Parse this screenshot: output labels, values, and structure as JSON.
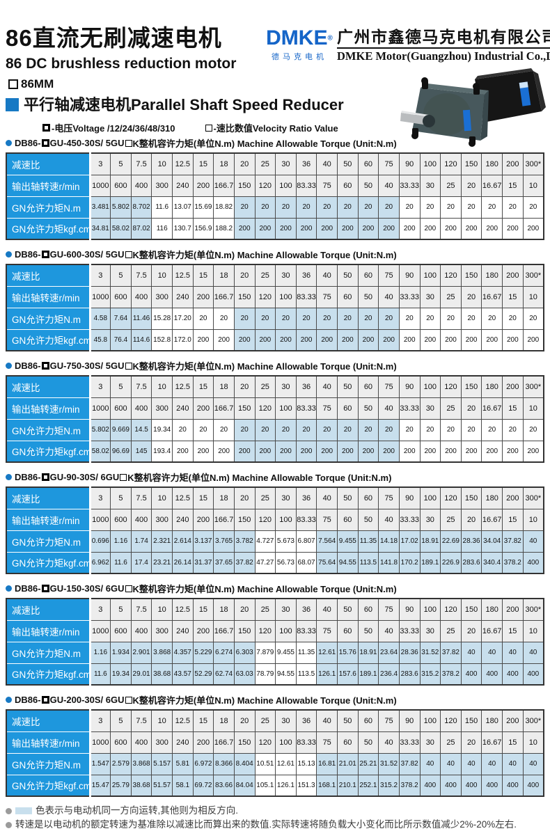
{
  "colors": {
    "header_blue": "#1e97dd",
    "cell_blue": "#c8dfed",
    "cell_gray": "#ededed",
    "accent_blue": "#1779c4",
    "logo_blue": "#1565c8"
  },
  "header": {
    "title_cn": "86直流无刷减速电机",
    "title_en": "86 DC brushless reduction motor",
    "size_label": "86MM",
    "series_label": "平行轴减速电机Parallel Shaft Speed Reducer",
    "legend_voltage": "-电压Voltage /12/24/36/48/310",
    "legend_ratio": "-速比数值Velocity Ratio Value"
  },
  "brand": {
    "logo": "DMKE",
    "logo_reg": "®",
    "logo_sub": "德马克电机",
    "company_cn": "广州市鑫德马克电机有限公司",
    "company_en": "DMKE Motor(Guangzhou) Industrial Co.,Limited"
  },
  "row_labels": [
    "减速比",
    "输出轴转速r/min",
    "GN允许力矩N.m",
    "GN允许力矩kgf.cm"
  ],
  "ratios": [
    "3",
    "5",
    "7.5",
    "10",
    "12.5",
    "15",
    "18",
    "20",
    "25",
    "30",
    "36",
    "40",
    "50",
    "60",
    "75",
    "90",
    "100",
    "120",
    "150",
    "180",
    "200",
    "300*"
  ],
  "speeds": [
    "1000",
    "600",
    "400",
    "300",
    "240",
    "200",
    "166.7",
    "150",
    "120",
    "100",
    "83.33",
    "75",
    "60",
    "50",
    "40",
    "33.33",
    "30",
    "25",
    "20",
    "16.67",
    "15",
    "10"
  ],
  "tables": [
    {
      "title_prefix": "DB86-",
      "title_mid": "GU-450-30S/ 5GU",
      "title_suffix": "K整机容许力矩(单位N.m) Machine Allowable Torque (Unit:N.m)",
      "nm": [
        "3.481",
        "5.802",
        "8.702",
        "11.6",
        "13.07",
        "15.69",
        "18.82",
        "20",
        "20",
        "20",
        "20",
        "20",
        "20",
        "20",
        "20",
        "20",
        "20",
        "20",
        "20",
        "20",
        "20",
        "20"
      ],
      "kgfcm": [
        "34.81",
        "58.02",
        "87.02",
        "116",
        "130.7",
        "156.9",
        "188.2",
        "200",
        "200",
        "200",
        "200",
        "200",
        "200",
        "200",
        "200",
        "200",
        "200",
        "200",
        "200",
        "200",
        "200",
        "200"
      ],
      "same_direction_cols": [
        0,
        1,
        2,
        7,
        8,
        9,
        10,
        11,
        12,
        13,
        14
      ]
    },
    {
      "title_prefix": "DB86-",
      "title_mid": "GU-600-30S/ 5GU",
      "title_suffix": "K整机容许力矩(单位N.m) Machine Allowable Torque (Unit:N.m)",
      "nm": [
        "4.58",
        "7.64",
        "11.46",
        "15.28",
        "17.20",
        "20",
        "20",
        "20",
        "20",
        "20",
        "20",
        "20",
        "20",
        "20",
        "20",
        "20",
        "20",
        "20",
        "20",
        "20",
        "20",
        "20"
      ],
      "kgfcm": [
        "45.8",
        "76.4",
        "114.6",
        "152.8",
        "172.0",
        "200",
        "200",
        "200",
        "200",
        "200",
        "200",
        "200",
        "200",
        "200",
        "200",
        "200",
        "200",
        "200",
        "200",
        "200",
        "200",
        "200"
      ],
      "same_direction_cols": [
        0,
        1,
        2,
        7,
        8,
        9,
        10,
        11,
        12,
        13,
        14
      ]
    },
    {
      "title_prefix": "DB86-",
      "title_mid": "GU-750-30S/ 5GU",
      "title_suffix": "K整机容许力矩(单位N.m) Machine Allowable Torque (Unit:N.m)",
      "nm": [
        "5.802",
        "9.669",
        "14.5",
        "19.34",
        "20",
        "20",
        "20",
        "20",
        "20",
        "20",
        "20",
        "20",
        "20",
        "20",
        "20",
        "20",
        "20",
        "20",
        "20",
        "20",
        "20",
        "20"
      ],
      "kgfcm": [
        "58.02",
        "96.69",
        "145",
        "193.4",
        "200",
        "200",
        "200",
        "200",
        "200",
        "200",
        "200",
        "200",
        "200",
        "200",
        "200",
        "200",
        "200",
        "200",
        "200",
        "200",
        "200",
        "200"
      ],
      "same_direction_cols": [
        0,
        1,
        2,
        7,
        8,
        9,
        10,
        11,
        12,
        13,
        14
      ]
    },
    {
      "title_prefix": "DB86-",
      "title_mid": "GU-90-30S/ 6GU",
      "title_suffix": "K整机容许力矩(单位N.m) Machine Allowable Torque (Unit:N.m)",
      "nm": [
        "0.696",
        "1.16",
        "1.74",
        "2.321",
        "2.614",
        "3.137",
        "3.765",
        "3.782",
        "4.727",
        "5.673",
        "6.807",
        "7.564",
        "9.455",
        "11.35",
        "14.18",
        "17.02",
        "18.91",
        "22.69",
        "28.36",
        "34.04",
        "37.82",
        "40"
      ],
      "kgfcm": [
        "6.962",
        "11.6",
        "17.4",
        "23.21",
        "26.14",
        "31.37",
        "37.65",
        "37.82",
        "47.27",
        "56.73",
        "68.07",
        "75.64",
        "94.55",
        "113.5",
        "141.8",
        "170.2",
        "189.1",
        "226.9",
        "283.6",
        "340.4",
        "378.2",
        "400"
      ],
      "same_direction_cols": [
        0,
        1,
        2,
        3,
        4,
        5,
        6,
        7,
        11,
        12,
        13,
        14,
        15,
        16,
        17,
        18,
        19,
        20,
        21
      ]
    },
    {
      "title_prefix": "DB86-",
      "title_mid": "GU-150-30S/ 6GU",
      "title_suffix": "K整机容许力矩(单位N.m) Machine Allowable Torque (Unit:N.m)",
      "nm": [
        "1.16",
        "1.934",
        "2.901",
        "3.868",
        "4.357",
        "5.229",
        "6.274",
        "6.303",
        "7.879",
        "9.455",
        "11.35",
        "12.61",
        "15.76",
        "18.91",
        "23.64",
        "28.36",
        "31.52",
        "37.82",
        "40",
        "40",
        "40",
        "40"
      ],
      "kgfcm": [
        "11.6",
        "19.34",
        "29.01",
        "38.68",
        "43.57",
        "52.29",
        "62.74",
        "63.03",
        "78.79",
        "94.55",
        "113.5",
        "126.1",
        "157.6",
        "189.1",
        "236.4",
        "283.6",
        "315.2",
        "378.2",
        "400",
        "400",
        "400",
        "400"
      ],
      "same_direction_cols": [
        0,
        1,
        2,
        3,
        4,
        5,
        6,
        7,
        11,
        12,
        13,
        14,
        15,
        16,
        17,
        18,
        19,
        20,
        21
      ]
    },
    {
      "title_prefix": "DB86-",
      "title_mid": "GU-200-30S/ 6GU",
      "title_suffix": "K整机容许力矩(单位N.m) Machine Allowable Torque (Unit:N.m)",
      "nm": [
        "1.547",
        "2.579",
        "3.868",
        "5.157",
        "5.81",
        "6.972",
        "8.366",
        "8.404",
        "10.51",
        "12.61",
        "15.13",
        "16.81",
        "21.01",
        "25.21",
        "31.52",
        "37.82",
        "40",
        "40",
        "40",
        "40",
        "40",
        "40"
      ],
      "kgfcm": [
        "15.47",
        "25.79",
        "38.68",
        "51.57",
        "58.1",
        "69.72",
        "83.66",
        "84.04",
        "105.1",
        "126.1",
        "151.3",
        "168.1",
        "210.1",
        "252.1",
        "315.2",
        "378.2",
        "400",
        "400",
        "400",
        "400",
        "400",
        "400"
      ],
      "same_direction_cols": [
        0,
        1,
        2,
        3,
        4,
        5,
        6,
        7,
        11,
        12,
        13,
        14,
        15,
        16,
        17,
        18,
        19,
        20,
        21
      ]
    }
  ],
  "footnotes": {
    "note1": "色表示与电动机同一方向运转,其他则为相反方向.",
    "note2": "转速是以电动机的额定转速为基准除以减速比而算出来的数值.实际转速将随负载大小变化而比所示数值减少2%-20%左右."
  }
}
